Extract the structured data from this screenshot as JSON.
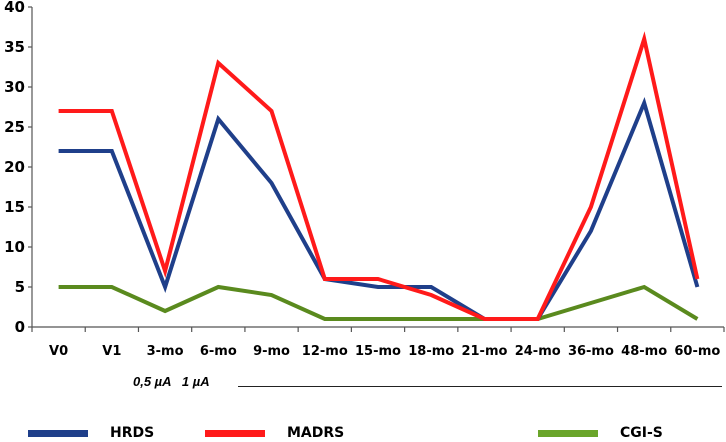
{
  "chart_data": {
    "type": "line",
    "title": "",
    "xlabel": "",
    "ylabel": "",
    "ylim": [
      0,
      40
    ],
    "yticks": [
      0,
      5,
      10,
      15,
      20,
      25,
      30,
      35,
      40
    ],
    "grid": false,
    "legend_position": "bottom",
    "categories": [
      "V0",
      "V1",
      "3-mo",
      "6-mo",
      "9-mo",
      "12-mo",
      "15-mo",
      "18-mo",
      "21-mo",
      "24-mo",
      "36-mo",
      "48-mo",
      "60-mo"
    ],
    "series": [
      {
        "name": "HRDS",
        "color": "#1f3f8a",
        "values": [
          22,
          22,
          5,
          26,
          18,
          6,
          5,
          5,
          1,
          1,
          12,
          28,
          5
        ]
      },
      {
        "name": "MADRS",
        "color": "#ff1a1a",
        "values": [
          27,
          27,
          7,
          33,
          27,
          6,
          6,
          4,
          1,
          1,
          15,
          36,
          6
        ]
      },
      {
        "name": "CGI-S",
        "color": "#5a8a1e",
        "values": [
          5,
          5,
          2,
          5,
          4,
          1,
          1,
          1,
          1,
          1,
          3,
          5,
          1
        ]
      }
    ],
    "annotations": [
      "0,5 µA  1 µA"
    ]
  },
  "dose_annotation": "0,5 µA   1 µA",
  "legend": [
    {
      "label": "HRDS",
      "color": "#1f3f8a"
    },
    {
      "label": "MADRS",
      "color": "#ff1a1a"
    },
    {
      "label": "CGI-S",
      "color": "#5a8a1e"
    }
  ]
}
